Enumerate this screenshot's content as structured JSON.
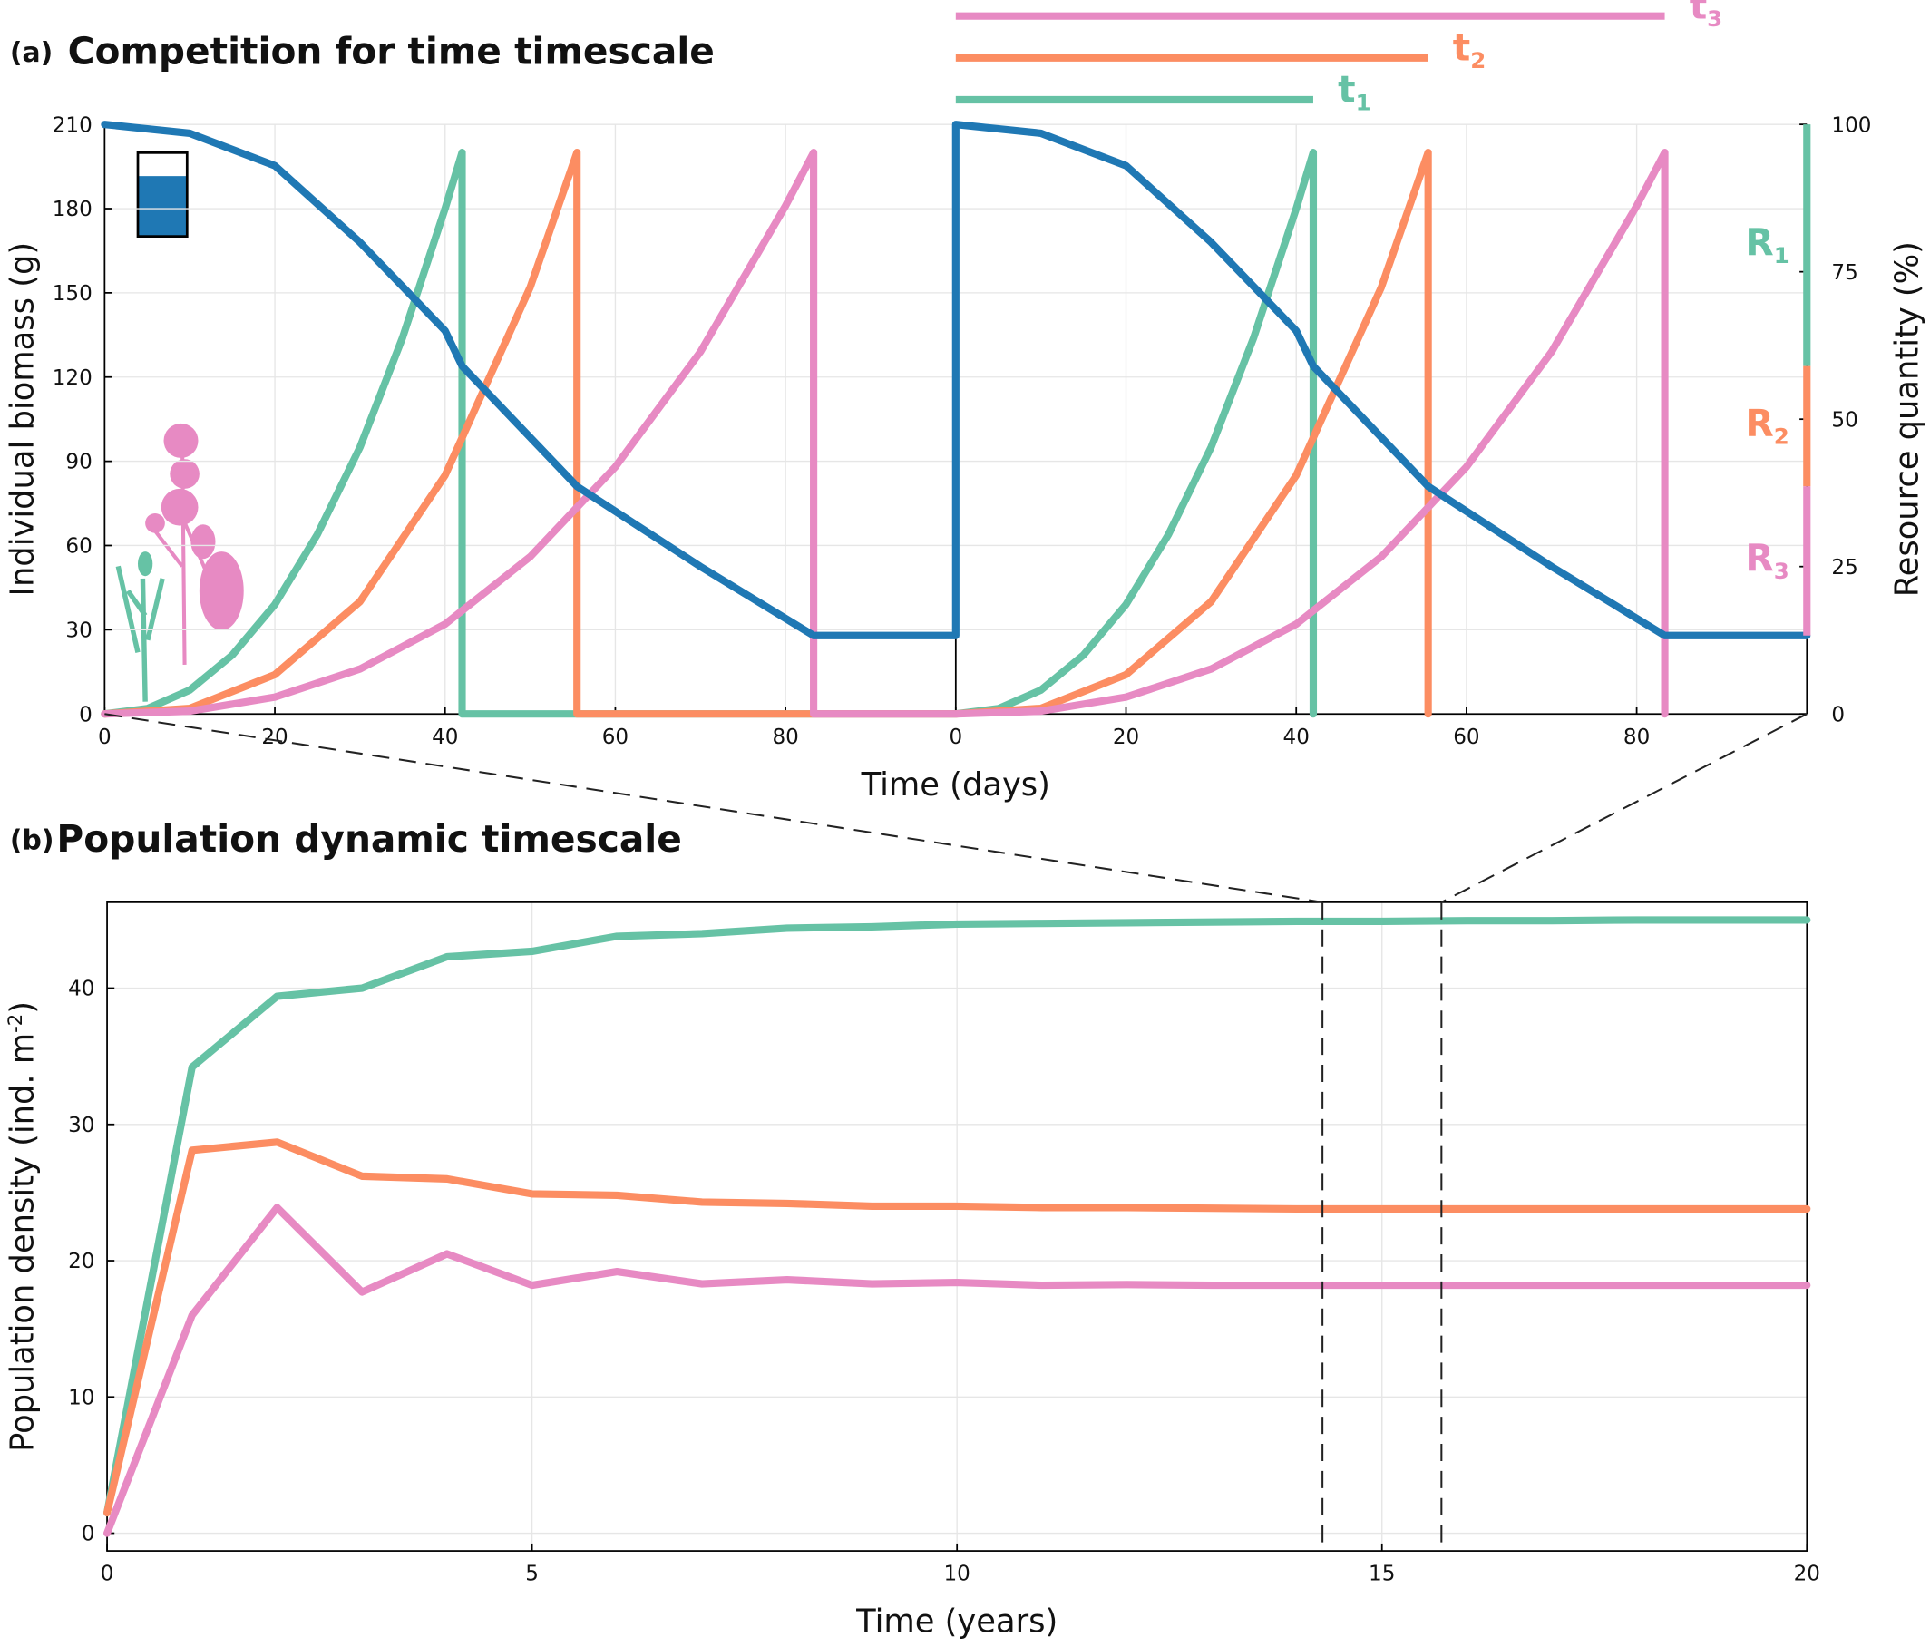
{
  "chart_data": [
    {
      "type": "line",
      "panel": "(a)",
      "title": "Competition for time timescale",
      "xlabel": "Time (days)",
      "ylabel": "Individual biomass (g)",
      "y2label": "Resource quantity (%)",
      "xlim": [
        0,
        200
      ],
      "xticks": [
        0,
        20,
        40,
        60,
        80,
        {
          "value": 100,
          "label": "0"
        },
        {
          "value": 120,
          "label": "20"
        },
        {
          "value": 140,
          "label": "40"
        },
        {
          "value": 160,
          "label": "60"
        },
        {
          "value": 180,
          "label": "80"
        }
      ],
      "ylim": [
        0,
        210
      ],
      "yticks": [
        0,
        30,
        60,
        90,
        120,
        150,
        180,
        210
      ],
      "y2lim": [
        0,
        100
      ],
      "y2ticks": [
        0,
        25,
        50,
        75,
        100
      ],
      "grid": true,
      "series": [
        {
          "color": "#66c2a5",
          "x": [
            0,
            5,
            10,
            15,
            20,
            25,
            30,
            35,
            40,
            42,
            42,
            100,
            105,
            110,
            115,
            120,
            125,
            130,
            135,
            140,
            142,
            142
          ],
          "values": [
            0,
            1.9,
            8.5,
            21,
            39,
            64,
            95,
            134,
            180,
            200,
            0,
            0,
            1.9,
            8.5,
            21,
            39,
            64,
            95,
            134,
            180,
            200,
            0
          ]
        },
        {
          "color": "#fc8d62",
          "x": [
            0,
            10,
            20,
            30,
            40,
            50,
            55.5,
            55.5,
            100,
            110,
            120,
            130,
            140,
            150,
            155.5,
            155.5
          ],
          "values": [
            0,
            2,
            14,
            40,
            85,
            152,
            200,
            0,
            0,
            2,
            14,
            40,
            85,
            152,
            200,
            0
          ]
        },
        {
          "color": "#e78ac3",
          "x": [
            0,
            10,
            20,
            30,
            40,
            50,
            60,
            70,
            80,
            83.3,
            83.3,
            100,
            110,
            120,
            130,
            140,
            150,
            160,
            170,
            180,
            183.3,
            183.3
          ],
          "values": [
            0,
            1,
            6,
            16,
            32,
            56,
            88,
            129,
            181,
            200,
            0,
            0,
            1,
            6,
            16,
            32,
            56,
            88,
            129,
            181,
            200,
            0
          ]
        },
        {
          "color": "#1f78b4",
          "axis": "y2",
          "x": [
            0,
            10,
            20,
            30,
            40,
            42,
            55.5,
            70,
            83.3,
            100,
            100,
            110,
            120,
            130,
            140,
            142,
            155.5,
            170,
            183.3,
            200
          ],
          "values": [
            100,
            98.5,
            93,
            80,
            65,
            59,
            38.6,
            25,
            13.3,
            13.3,
            100,
            98.5,
            93,
            80,
            65,
            59,
            38.6,
            25,
            13.3,
            13.3
          ]
        }
      ],
      "durations": [
        {
          "base": "t",
          "sub": "1",
          "color": "#66c2a5",
          "value": 42
        },
        {
          "base": "t",
          "sub": "2",
          "color": "#fc8d62",
          "value": 55.5
        },
        {
          "base": "t",
          "sub": "3",
          "color": "#e78ac3",
          "value": 83.3
        }
      ],
      "resources": [
        {
          "base": "R",
          "sub": "1",
          "color": "#66c2a5",
          "range": [
            59,
            100
          ]
        },
        {
          "base": "R",
          "sub": "2",
          "color": "#fc8d62",
          "range": [
            38.6,
            59
          ]
        },
        {
          "base": "R",
          "sub": "3",
          "color": "#e78ac3",
          "range": [
            13.3,
            38.6
          ]
        }
      ]
    },
    {
      "type": "line",
      "panel": "(b)",
      "title": "Population dynamic timescale",
      "xlabel": "Time (years)",
      "ylabel_parts": [
        "Population density (ind. m",
        "-2",
        ")"
      ],
      "xlim": [
        0,
        20
      ],
      "xticks": [
        0,
        5,
        10,
        15,
        20
      ],
      "ylim": [
        -1.3,
        46.3
      ],
      "yticks": [
        0,
        10,
        20,
        30,
        40
      ],
      "grid": true,
      "highlight_interval": [
        14.3,
        15.7
      ],
      "x": [
        0,
        1,
        2,
        3,
        4,
        5,
        6,
        7,
        8,
        9,
        10,
        11,
        12,
        13,
        14,
        15,
        16,
        17,
        18,
        19,
        20
      ],
      "series": [
        {
          "color": "#66c2a5",
          "values": [
            1.5,
            34.2,
            39.4,
            40,
            42.3,
            42.7,
            43.8,
            44,
            44.4,
            44.5,
            44.7,
            44.75,
            44.8,
            44.85,
            44.9,
            44.9,
            44.95,
            44.95,
            45,
            45,
            45
          ]
        },
        {
          "color": "#fc8d62",
          "values": [
            1.5,
            28.1,
            28.7,
            26.2,
            26,
            24.9,
            24.8,
            24.3,
            24.2,
            24,
            24,
            23.9,
            23.9,
            23.85,
            23.8,
            23.8,
            23.8,
            23.8,
            23.8,
            23.8,
            23.8
          ]
        },
        {
          "color": "#e78ac3",
          "values": [
            0,
            16,
            23.9,
            17.7,
            20.5,
            18.2,
            19.2,
            18.3,
            18.6,
            18.3,
            18.4,
            18.2,
            18.25,
            18.2,
            18.2,
            18.2,
            18.2,
            18.2,
            18.2,
            18.2,
            18.2
          ]
        }
      ]
    }
  ]
}
